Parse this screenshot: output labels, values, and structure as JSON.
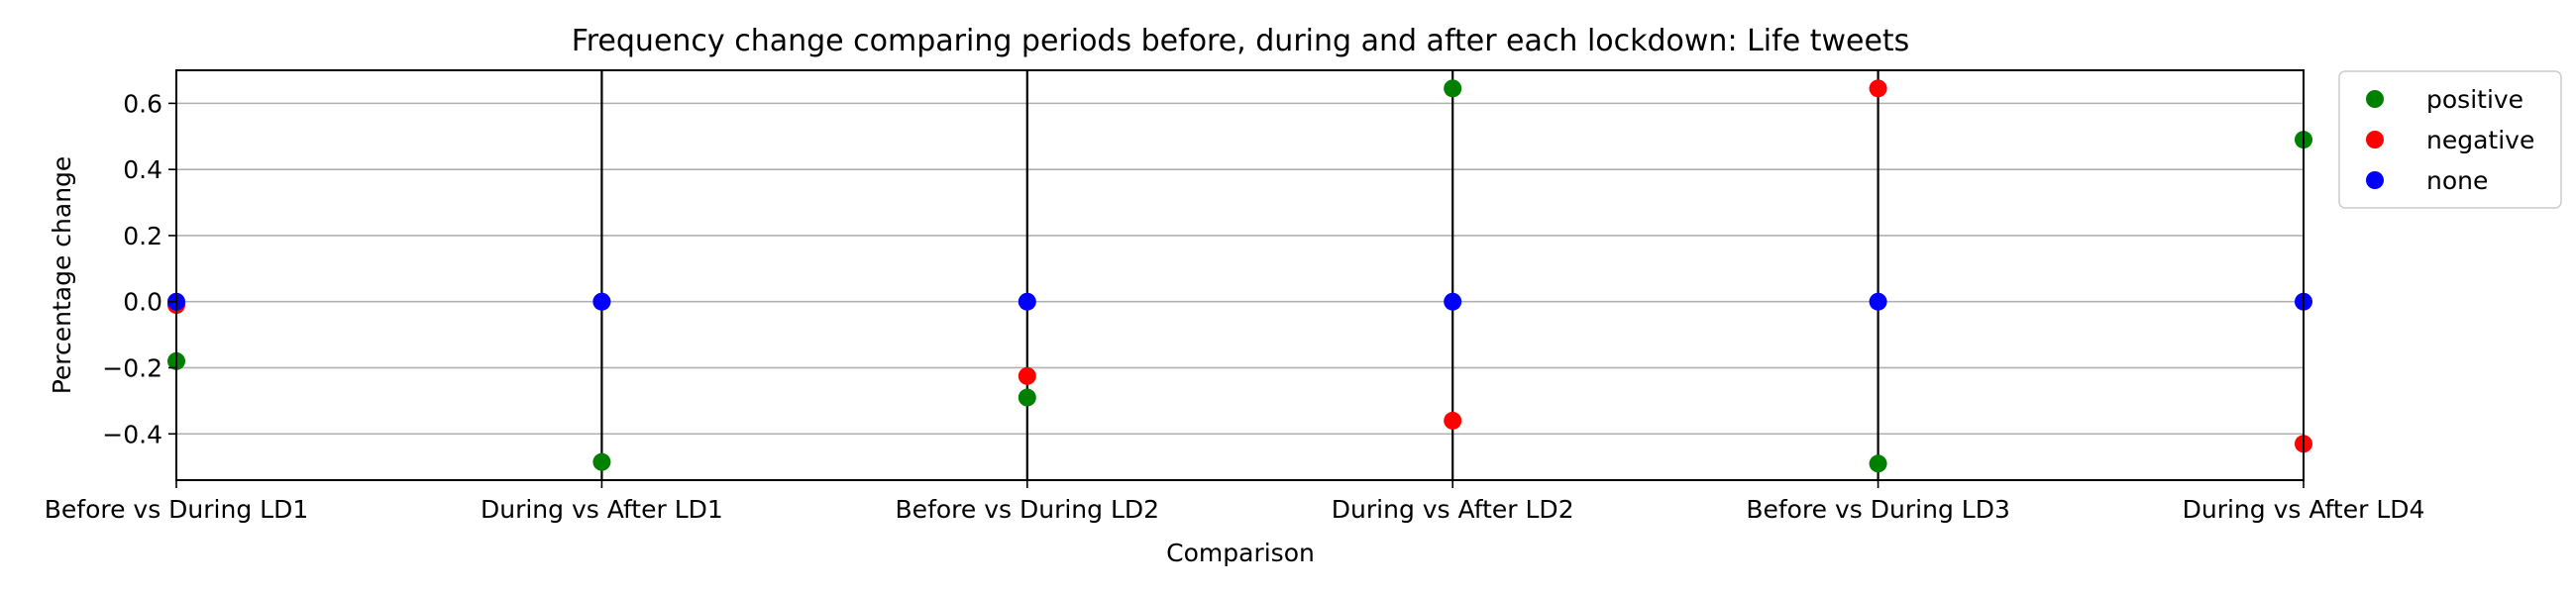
{
  "chart_data": {
    "type": "scatter",
    "title": "Frequency change comparing periods before, during and after each lockdown: Life tweets",
    "xlabel": "Comparison",
    "ylabel": "Percentage change",
    "categories": [
      "Before vs During LD1",
      "During vs After LD1",
      "Before vs During LD2",
      "During vs After LD2",
      "Before vs During LD3",
      "During vs After LD4"
    ],
    "ylim": [
      -0.54,
      0.7
    ],
    "yticks": [
      -0.4,
      -0.2,
      0.0,
      0.2,
      0.4,
      0.6
    ],
    "ytick_labels": [
      "−0.4",
      "−0.2",
      "0.0",
      "0.2",
      "0.4",
      "0.6"
    ],
    "grid": "horizontal",
    "vertical_lines_at": [
      1,
      2,
      3,
      4
    ],
    "legend_position": "outside-right-top",
    "series": [
      {
        "name": "positive",
        "color": "#008000",
        "values": [
          -0.18,
          -0.485,
          -0.29,
          0.645,
          -0.49,
          0.49
        ]
      },
      {
        "name": "negative",
        "color": "#ff0000",
        "values": [
          -0.01,
          0.0,
          -0.225,
          -0.36,
          0.645,
          -0.43
        ]
      },
      {
        "name": "none",
        "color": "#0000ff",
        "values": [
          0.0,
          0.0,
          0.0,
          0.0,
          0.0,
          0.0
        ]
      }
    ]
  }
}
